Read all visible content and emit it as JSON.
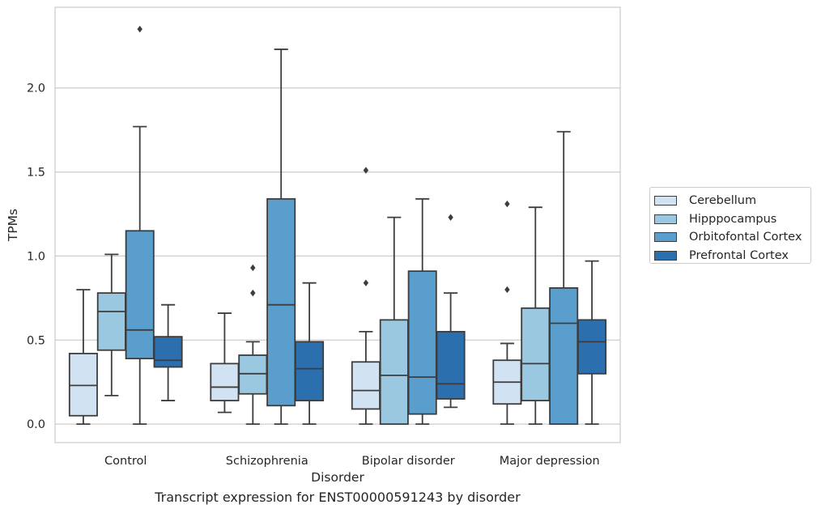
{
  "chart_data": {
    "type": "box",
    "title": "",
    "caption": "Transcript expression for ENST00000591243 by disorder",
    "xlabel": "Disorder",
    "ylabel": "TPMs",
    "ylim": [
      -0.11,
      2.48
    ],
    "yticks": [
      "0.0",
      "0.5",
      "1.0",
      "1.5",
      "2.0"
    ],
    "ytick_values": [
      0.0,
      0.5,
      1.0,
      1.5,
      2.0
    ],
    "grid": "horizontal",
    "legend_position": "right",
    "categories": [
      "Control",
      "Schizophrenia",
      "Bipolar disorder",
      "Major depression"
    ],
    "series": [
      {
        "name": "Cerebellum",
        "color": "#d1e2f2",
        "boxes": [
          {
            "whisker_low": 0.0,
            "q1": 0.05,
            "median": 0.23,
            "q3": 0.42,
            "whisker_high": 0.8,
            "outliers": []
          },
          {
            "whisker_low": 0.07,
            "q1": 0.14,
            "median": 0.22,
            "q3": 0.36,
            "whisker_high": 0.66,
            "outliers": []
          },
          {
            "whisker_low": 0.0,
            "q1": 0.09,
            "median": 0.2,
            "q3": 0.37,
            "whisker_high": 0.55,
            "outliers": [
              0.84,
              1.51
            ]
          },
          {
            "whisker_low": 0.0,
            "q1": 0.12,
            "median": 0.25,
            "q3": 0.38,
            "whisker_high": 0.48,
            "outliers": [
              0.8,
              1.31
            ]
          }
        ]
      },
      {
        "name": "Hipppocampus",
        "color": "#9ac8e0",
        "boxes": [
          {
            "whisker_low": 0.17,
            "q1": 0.44,
            "median": 0.67,
            "q3": 0.78,
            "whisker_high": 1.01,
            "outliers": []
          },
          {
            "whisker_low": 0.0,
            "q1": 0.18,
            "median": 0.3,
            "q3": 0.41,
            "whisker_high": 0.49,
            "outliers": [
              0.78,
              0.93
            ]
          },
          {
            "whisker_low": 0.0,
            "q1": 0.0,
            "median": 0.29,
            "q3": 0.62,
            "whisker_high": 1.23,
            "outliers": []
          },
          {
            "whisker_low": 0.0,
            "q1": 0.14,
            "median": 0.36,
            "q3": 0.69,
            "whisker_high": 1.29,
            "outliers": []
          }
        ]
      },
      {
        "name": "Orbitofontal Cortex",
        "color": "#5a9ecd",
        "boxes": [
          {
            "whisker_low": 0.0,
            "q1": 0.39,
            "median": 0.56,
            "q3": 1.15,
            "whisker_high": 1.77,
            "outliers": [
              2.35
            ]
          },
          {
            "whisker_low": 0.0,
            "q1": 0.11,
            "median": 0.71,
            "q3": 1.34,
            "whisker_high": 2.23,
            "outliers": []
          },
          {
            "whisker_low": 0.0,
            "q1": 0.06,
            "median": 0.28,
            "q3": 0.91,
            "whisker_high": 1.34,
            "outliers": []
          },
          {
            "whisker_low": 0.0,
            "q1": 0.0,
            "median": 0.6,
            "q3": 0.81,
            "whisker_high": 1.74,
            "outliers": []
          }
        ]
      },
      {
        "name": "Prefrontal Cortex",
        "color": "#2b6fae",
        "boxes": [
          {
            "whisker_low": 0.14,
            "q1": 0.34,
            "median": 0.38,
            "q3": 0.52,
            "whisker_high": 0.71,
            "outliers": []
          },
          {
            "whisker_low": 0.0,
            "q1": 0.14,
            "median": 0.33,
            "q3": 0.49,
            "whisker_high": 0.84,
            "outliers": []
          },
          {
            "whisker_low": 0.1,
            "q1": 0.15,
            "median": 0.24,
            "q3": 0.55,
            "whisker_high": 0.78,
            "outliers": [
              1.23
            ]
          },
          {
            "whisker_low": 0.0,
            "q1": 0.3,
            "median": 0.49,
            "q3": 0.62,
            "whisker_high": 0.97,
            "outliers": []
          }
        ]
      }
    ]
  }
}
